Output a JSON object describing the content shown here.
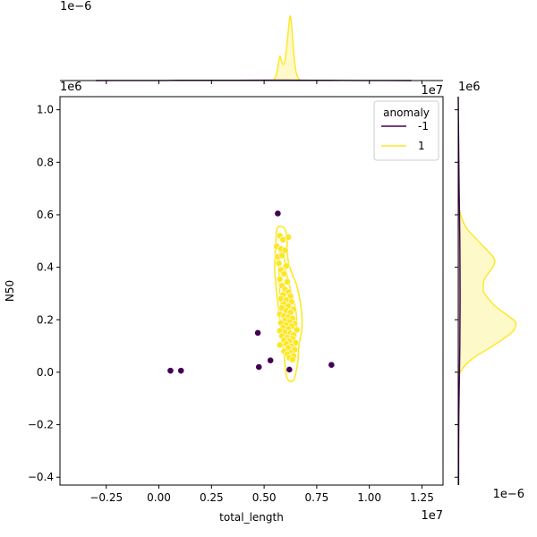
{
  "chart_data": {
    "type": "scatter",
    "xlabel": "total_length",
    "ylabel": "N50",
    "x_multiplier_label": "1e7",
    "y_multiplier_label": "1e6",
    "top_marginal_multiplier_label": "1e−6",
    "right_marginal_multiplier_label": "1e6",
    "right_marginal_x_multiplier_label": "1e−6",
    "top_marginal_x_multiplier_label": "1e7",
    "xlim": [
      -4700000,
      13500000
    ],
    "ylim": [
      -430000,
      1050000
    ],
    "x_ticks": [
      {
        "value": -2500000,
        "label": "−0.25"
      },
      {
        "value": 0,
        "label": "0.00"
      },
      {
        "value": 2500000,
        "label": "0.25"
      },
      {
        "value": 5000000,
        "label": "0.50"
      },
      {
        "value": 7500000,
        "label": "0.75"
      },
      {
        "value": 10000000,
        "label": "1.00"
      },
      {
        "value": 12500000,
        "label": "1.25"
      }
    ],
    "y_ticks": [
      {
        "value": -400000,
        "label": "−0.4"
      },
      {
        "value": -200000,
        "label": "−0.2"
      },
      {
        "value": 0,
        "label": "0.0"
      },
      {
        "value": 200000,
        "label": "0.2"
      },
      {
        "value": 400000,
        "label": "0.4"
      },
      {
        "value": 600000,
        "label": "0.6"
      },
      {
        "value": 800000,
        "label": "0.8"
      },
      {
        "value": 1000000,
        "label": "1.0"
      }
    ],
    "legend": {
      "title": "anomaly",
      "placement": "top-right",
      "entries": [
        {
          "label": "-1",
          "color": "#440154"
        },
        {
          "label": "1",
          "color": "#fde725"
        }
      ]
    },
    "series": [
      {
        "name": "-1",
        "color": "#440154",
        "points": [
          [
            5650000,
            605000
          ],
          [
            4700000,
            150000
          ],
          [
            5300000,
            45000
          ],
          [
            4750000,
            20000
          ],
          [
            6200000,
            10000
          ],
          [
            8200000,
            28000
          ],
          [
            550000,
            6000
          ],
          [
            1050000,
            6000
          ]
        ]
      },
      {
        "name": "1",
        "color": "#fde725",
        "points": [
          [
            5750000,
            520000
          ],
          [
            6150000,
            515000
          ],
          [
            5900000,
            505000
          ],
          [
            5600000,
            480000
          ],
          [
            5800000,
            470000
          ],
          [
            6000000,
            465000
          ],
          [
            5650000,
            440000
          ],
          [
            5850000,
            445000
          ],
          [
            5700000,
            415000
          ],
          [
            6050000,
            405000
          ],
          [
            5800000,
            390000
          ],
          [
            5950000,
            375000
          ],
          [
            5750000,
            355000
          ],
          [
            6100000,
            345000
          ],
          [
            5850000,
            330000
          ],
          [
            6000000,
            315000
          ],
          [
            6150000,
            305000
          ],
          [
            5900000,
            295000
          ],
          [
            6250000,
            290000
          ],
          [
            5800000,
            280000
          ],
          [
            6050000,
            275000
          ],
          [
            6300000,
            268000
          ],
          [
            5950000,
            260000
          ],
          [
            6150000,
            252000
          ],
          [
            5850000,
            245000
          ],
          [
            6400000,
            240000
          ],
          [
            6050000,
            235000
          ],
          [
            6250000,
            228000
          ],
          [
            5750000,
            222000
          ],
          [
            5950000,
            215000
          ],
          [
            6150000,
            210000
          ],
          [
            6350000,
            205000
          ],
          [
            6000000,
            198000
          ],
          [
            6200000,
            192000
          ],
          [
            5800000,
            188000
          ],
          [
            6450000,
            185000
          ],
          [
            6050000,
            180000
          ],
          [
            6300000,
            175000
          ],
          [
            5900000,
            170000
          ],
          [
            6150000,
            165000
          ],
          [
            6550000,
            162000
          ],
          [
            5750000,
            158000
          ],
          [
            6000000,
            152000
          ],
          [
            6250000,
            148000
          ],
          [
            6400000,
            142000
          ],
          [
            5850000,
            138000
          ],
          [
            6100000,
            132000
          ],
          [
            6350000,
            128000
          ],
          [
            5950000,
            122000
          ],
          [
            6200000,
            118000
          ],
          [
            6500000,
            112000
          ],
          [
            6050000,
            108000
          ],
          [
            5750000,
            104000
          ],
          [
            6300000,
            98000
          ],
          [
            6150000,
            92000
          ],
          [
            6450000,
            86000
          ],
          [
            5950000,
            80000
          ],
          [
            6250000,
            74000
          ],
          [
            6100000,
            68000
          ],
          [
            6400000,
            62000
          ],
          [
            6200000,
            55000
          ],
          [
            6350000,
            48000
          ]
        ]
      }
    ],
    "contours": {
      "series": "1",
      "color": "#fde725",
      "levels": [
        {
          "level": "outer",
          "points": [
            [
              5700000,
              555000
            ],
            [
              5950000,
              550000
            ],
            [
              6080000,
              520000
            ],
            [
              6100000,
              470000
            ],
            [
              6150000,
              420000
            ],
            [
              6350000,
              370000
            ],
            [
              6550000,
              330000
            ],
            [
              6750000,
              250000
            ],
            [
              6800000,
              170000
            ],
            [
              6650000,
              100000
            ],
            [
              6600000,
              40000
            ],
            [
              6400000,
              -30000
            ],
            [
              6100000,
              -25000
            ],
            [
              6000000,
              20000
            ],
            [
              5950000,
              70000
            ],
            [
              5850000,
              120000
            ],
            [
              5750000,
              200000
            ],
            [
              5600000,
              300000
            ],
            [
              5500000,
              400000
            ],
            [
              5550000,
              480000
            ],
            [
              5600000,
              540000
            ]
          ]
        },
        {
          "level": "inner",
          "points": [
            [
              5800000,
              470000
            ],
            [
              5950000,
              455000
            ],
            [
              6000000,
              400000
            ],
            [
              6150000,
              350000
            ],
            [
              6300000,
              300000
            ],
            [
              6500000,
              240000
            ],
            [
              6550000,
              170000
            ],
            [
              6450000,
              110000
            ],
            [
              6300000,
              75000
            ],
            [
              6100000,
              90000
            ],
            [
              5950000,
              140000
            ],
            [
              5850000,
              210000
            ],
            [
              5750000,
              300000
            ],
            [
              5700000,
              380000
            ],
            [
              5700000,
              440000
            ]
          ]
        }
      ]
    },
    "top_marginal": {
      "series": [
        {
          "name": "1",
          "color": "#fde725",
          "x": [
            5400000,
            5500000,
            5600000,
            5700000,
            5750000,
            5800000,
            5900000,
            6000000,
            6100000,
            6200000,
            6250000,
            6300000,
            6400000,
            6500000,
            6600000,
            6700000,
            6800000
          ],
          "density": [
            0.0,
            0.03,
            0.12,
            0.3,
            0.38,
            0.33,
            0.25,
            0.33,
            0.62,
            0.93,
            1.0,
            0.88,
            0.45,
            0.16,
            0.05,
            0.01,
            0.0
          ]
        },
        {
          "name": "-1",
          "color": "#440154",
          "x": [
            -3000000,
            0,
            1000000,
            3000000,
            5000000,
            6000000,
            8000000,
            10000000,
            12000000
          ],
          "density": [
            0.0,
            0.002,
            0.004,
            0.004,
            0.006,
            0.006,
            0.004,
            0.002,
            0.0
          ]
        }
      ]
    },
    "right_marginal": {
      "series": [
        {
          "name": "1",
          "color": "#fde725",
          "y": [
            -50000,
            0,
            50000,
            100000,
            150000,
            180000,
            200000,
            250000,
            300000,
            330000,
            360000,
            400000,
            430000,
            460000,
            500000,
            550000,
            600000,
            650000
          ],
          "density": [
            0.0,
            0.03,
            0.22,
            0.55,
            0.85,
            0.92,
            0.88,
            0.6,
            0.42,
            0.4,
            0.43,
            0.55,
            0.58,
            0.48,
            0.32,
            0.13,
            0.04,
            0.0
          ]
        },
        {
          "name": "-1",
          "color": "#440154",
          "y": [
            -430000,
            -200000,
            0,
            100000,
            300000,
            500000,
            700000,
            900000,
            1050000
          ],
          "density": [
            0.005,
            0.008,
            0.02,
            0.025,
            0.03,
            0.025,
            0.015,
            0.005,
            0.0
          ]
        }
      ]
    }
  }
}
